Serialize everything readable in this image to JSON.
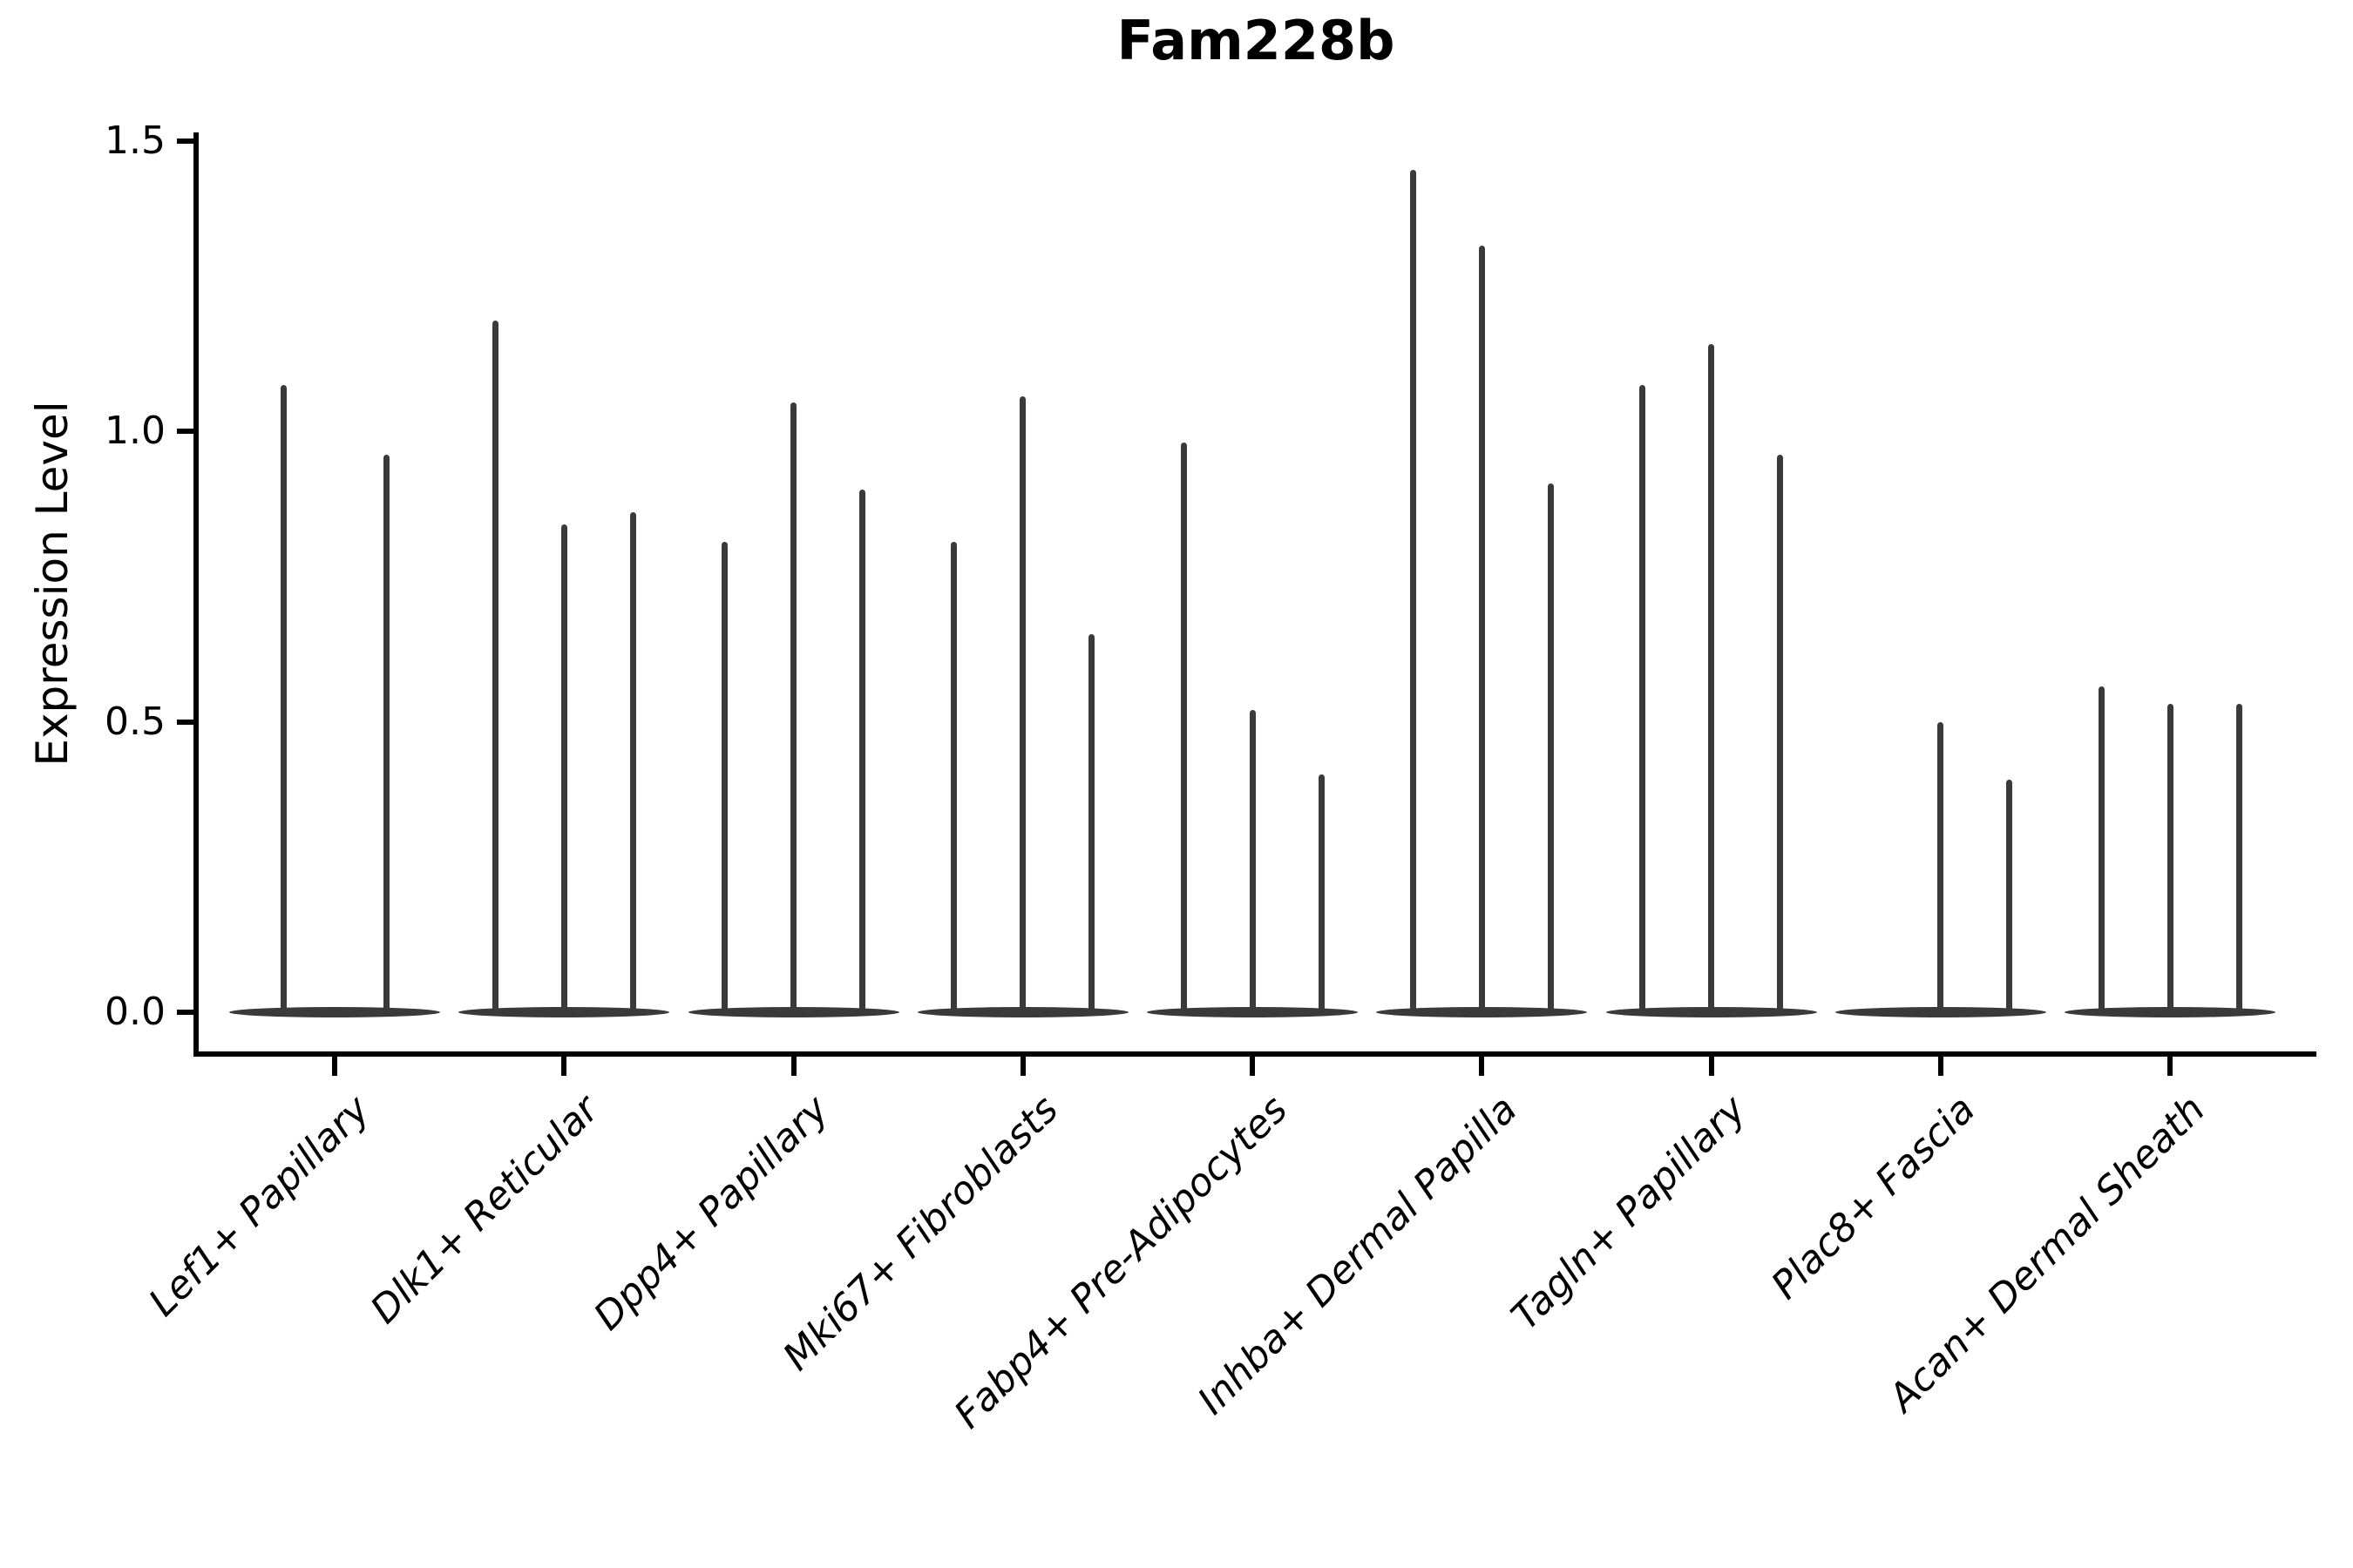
{
  "title": "Fam228b",
  "ylabel": "Expression Level",
  "chart_data": {
    "type": "violin",
    "title": "Fam228b",
    "xlabel": "",
    "ylabel": "Expression Level",
    "ylim": [
      0,
      1.5
    ],
    "yticks": [
      0.0,
      0.5,
      1.0,
      1.5
    ],
    "ytick_labels": [
      "0.0",
      "0.5",
      "1.0",
      "1.5"
    ],
    "grid": false,
    "legend": "none",
    "violin_color": "#3a3a3a",
    "description": "Thin violin plots of gene expression per fibroblast cell type; each category holds 2-3 narrow violins (one per sample). All densities are massed at 0 (flat disc) with a thin spike up to the max expression value; spike value 0 means a flat violin with no spike.",
    "categories": [
      "Lef1+ Papillary",
      "Dlk1+ Reticular",
      "Dpp4+ Papillary",
      "Mki67+ Fibroblasts",
      "Fabp4+ Pre-Adipocytes",
      "Inhba+ Dermal Papilla",
      "Tagln+ Papillary",
      "Plac8+ Fascia",
      "Acan+ Dermal Sheath"
    ],
    "groups": [
      {
        "label": "Lef1+ Papillary",
        "spikes": [
          1.08,
          0.96
        ]
      },
      {
        "label": "Dlk1+ Reticular",
        "spikes": [
          1.19,
          0.84,
          0.86
        ]
      },
      {
        "label": "Dpp4+ Papillary",
        "spikes": [
          0.81,
          1.05,
          0.9
        ]
      },
      {
        "label": "Mki67+ Fibroblasts",
        "spikes": [
          0.81,
          1.06,
          0.65
        ]
      },
      {
        "label": "Fabp4+ Pre-Adipocytes",
        "spikes": [
          0.98,
          0.52,
          0.41
        ]
      },
      {
        "label": "Inhba+ Dermal Papilla",
        "spikes": [
          1.45,
          1.32,
          0.91
        ]
      },
      {
        "label": "Tagln+ Papillary",
        "spikes": [
          1.08,
          1.15,
          0.96
        ]
      },
      {
        "label": "Plac8+ Fascia",
        "spikes": [
          0.0,
          0.5,
          0.4
        ]
      },
      {
        "label": "Acan+ Dermal Sheath",
        "spikes": [
          0.56,
          0.53,
          0.53
        ]
      }
    ]
  }
}
